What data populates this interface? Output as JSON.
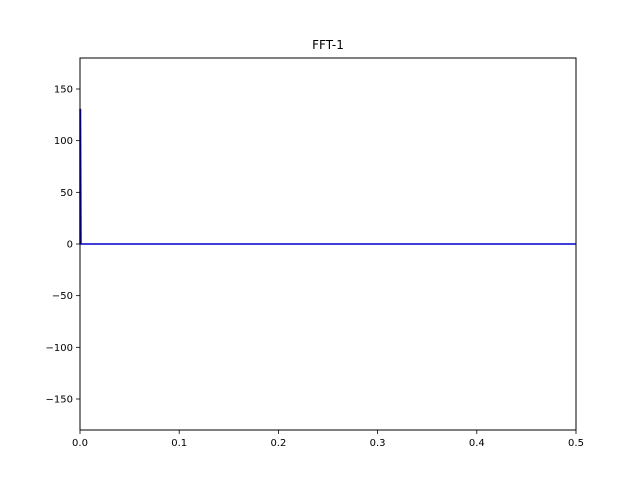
{
  "chart_data": {
    "type": "line",
    "title": "FFT-1",
    "xlabel": "",
    "ylabel": "",
    "xlim": [
      0,
      0.5
    ],
    "ylim": [
      -180,
      180
    ],
    "grid": false,
    "xticks": [
      0.0,
      0.1,
      0.2,
      0.3,
      0.4,
      0.5
    ],
    "xtick_labels": [
      "0.0",
      "0.1",
      "0.2",
      "0.3",
      "0.4",
      "0.5"
    ],
    "yticks": [
      150,
      100,
      50,
      0,
      -50,
      -100,
      -150
    ],
    "ytick_labels": [
      "150",
      "100",
      "50",
      "0",
      "−50",
      "−100",
      "−150"
    ],
    "series": [
      {
        "color": "#0000cc",
        "x": [
          0.0,
          0.0,
          0.0005,
          0.001,
          0.1,
          0.2,
          0.3,
          0.4,
          0.5
        ],
        "y": [
          0,
          130,
          130,
          0,
          0,
          0,
          0,
          0,
          0
        ]
      }
    ]
  }
}
